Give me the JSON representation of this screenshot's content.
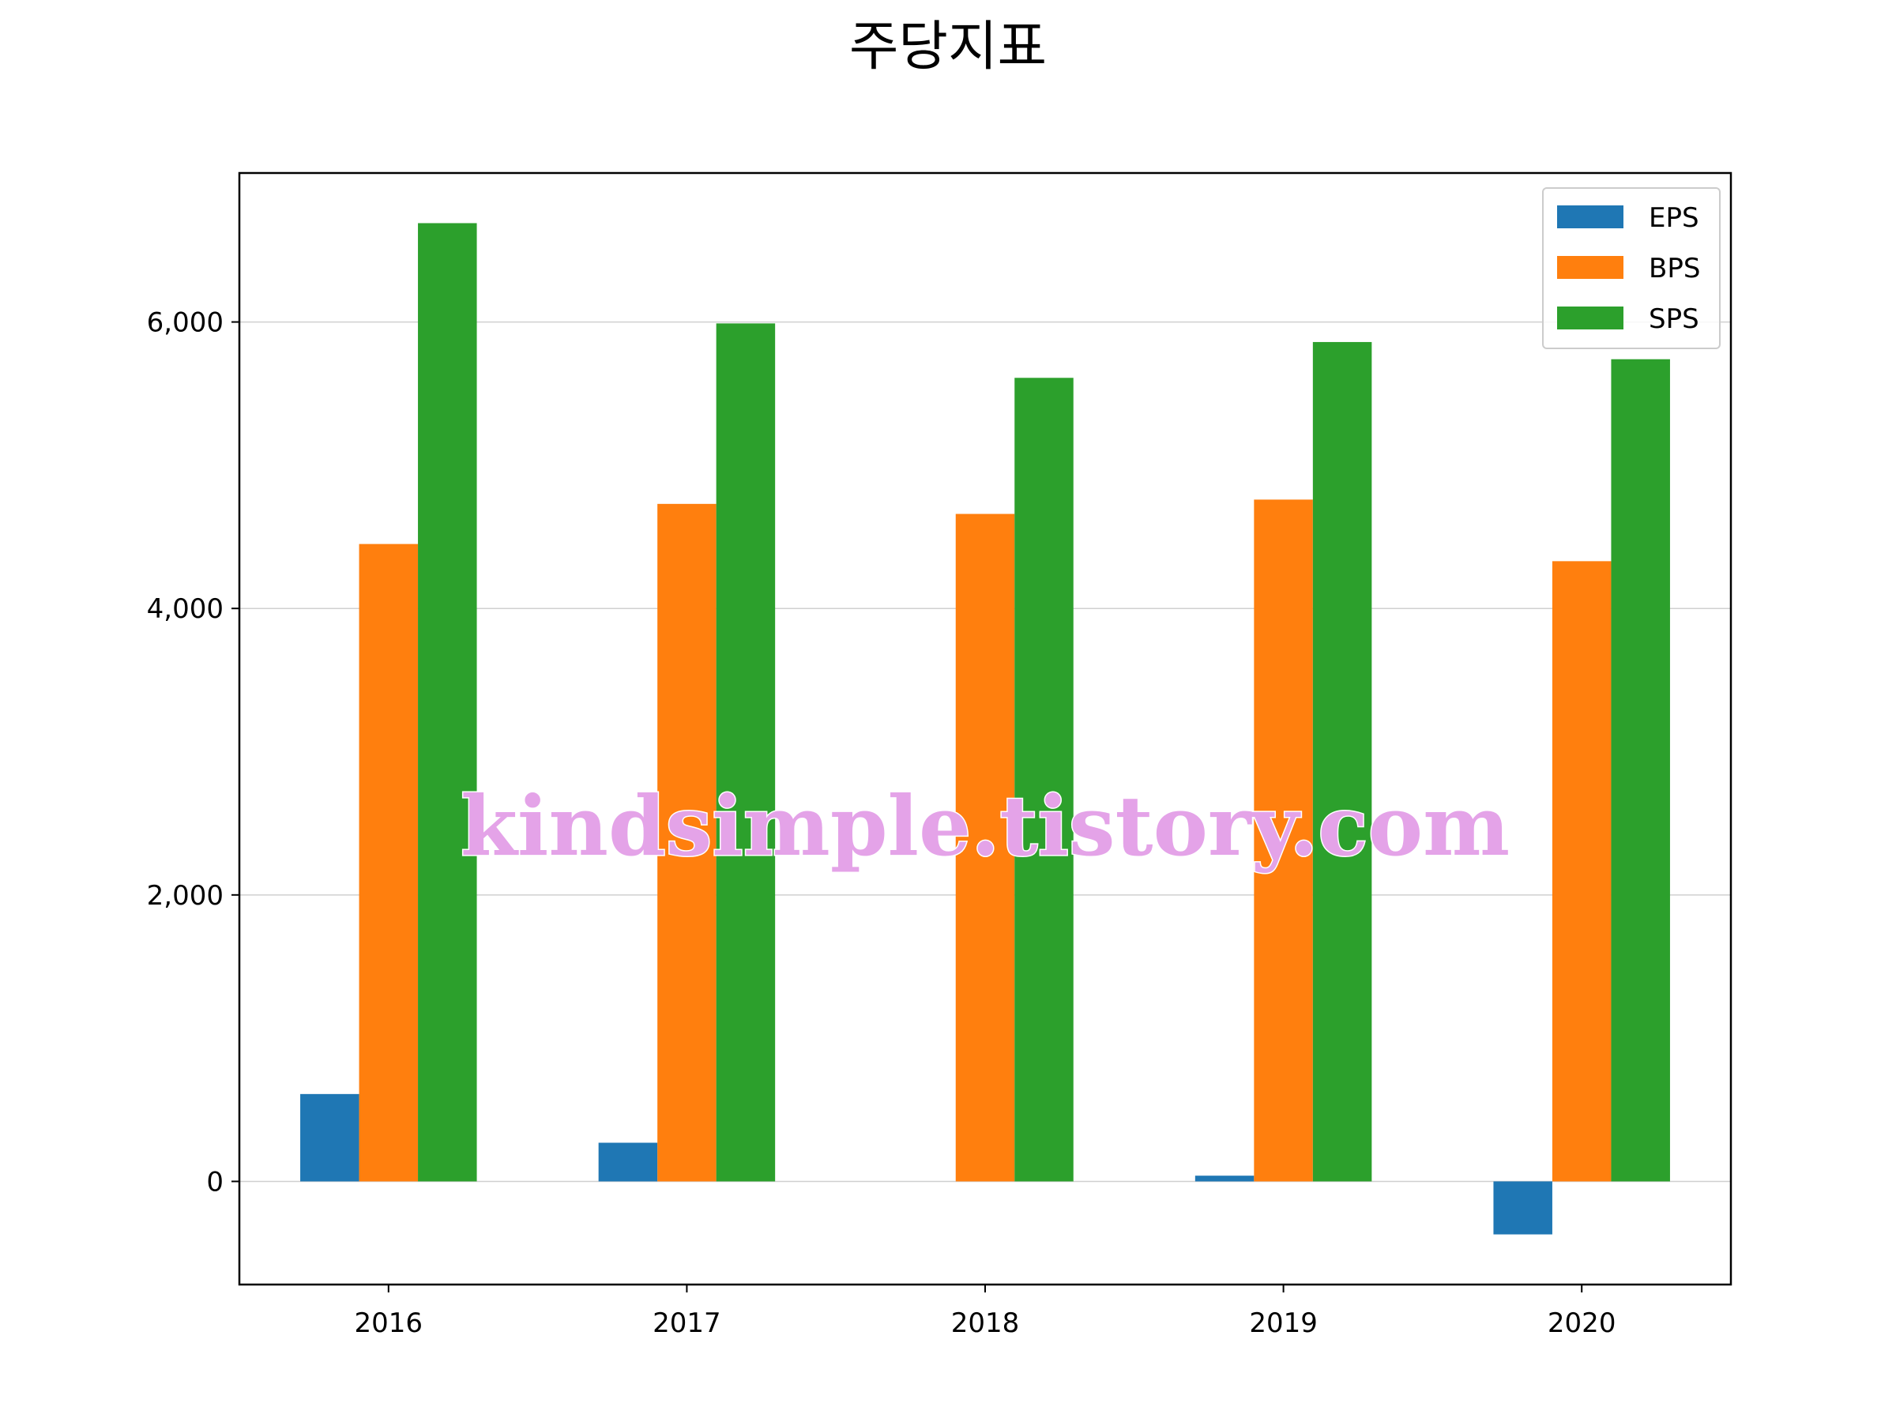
{
  "chart_data": {
    "type": "bar",
    "title": "주당지표",
    "xlabel": "",
    "ylabel": "",
    "categories": [
      "2016",
      "2017",
      "2018",
      "2019",
      "2020"
    ],
    "series": [
      {
        "name": "EPS",
        "color": "#1f77b4",
        "values": [
          610,
          270,
          0,
          40,
          -370
        ]
      },
      {
        "name": "BPS",
        "color": "#ff7f0e",
        "values": [
          4450,
          4730,
          4660,
          4760,
          4330
        ]
      },
      {
        "name": "SPS",
        "color": "#2ca02c",
        "values": [
          6690,
          5990,
          5610,
          5860,
          5740
        ]
      }
    ],
    "yticks": [
      0,
      2000,
      4000,
      6000
    ],
    "ytick_labels": [
      "0",
      "2,000",
      "4,000",
      "6,000"
    ],
    "ylim": [
      -720,
      7040
    ],
    "grid": "horizontal",
    "legend_position": "top-right",
    "watermark": "kindsimple.tistory.com"
  }
}
